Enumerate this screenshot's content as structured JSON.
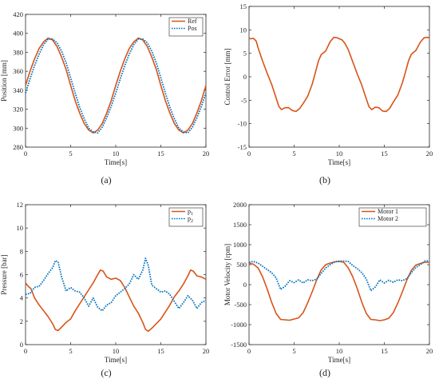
{
  "colors": {
    "orange": "#D95319",
    "blue": "#0072BD",
    "axis": "#262626"
  },
  "chart_data": [
    {
      "id": "a",
      "type": "line",
      "sublabel": "(a)",
      "xlabel": "Time[s]",
      "ylabel": "Position [mm]",
      "xlim": [
        0,
        20
      ],
      "ylim": [
        280,
        420
      ],
      "xticks": [
        0,
        5,
        10,
        15,
        20
      ],
      "yticks": [
        280,
        300,
        320,
        340,
        360,
        380,
        400,
        420
      ],
      "legend_position": "top-right",
      "series": [
        {
          "name": "Ref",
          "color": "#D95319",
          "style": "solid",
          "x": [
            0,
            0.5,
            1,
            1.5,
            2,
            2.5,
            3,
            3.5,
            4,
            4.5,
            5,
            5.5,
            6,
            6.5,
            7,
            7.5,
            8,
            8.5,
            9,
            9.5,
            10,
            10.5,
            11,
            11.5,
            12,
            12.5,
            13,
            13.5,
            14,
            14.5,
            15,
            15.5,
            16,
            16.5,
            17,
            17.5,
            18,
            18.5,
            19,
            19.5,
            20
          ],
          "y": [
            345,
            360,
            373,
            384,
            391,
            395,
            393,
            386,
            375,
            362,
            345,
            329,
            316,
            305,
            298,
            295,
            298,
            305,
            316,
            329,
            345,
            360,
            373,
            384,
            391,
            395,
            393,
            386,
            375,
            362,
            345,
            329,
            316,
            305,
            298,
            295,
            298,
            305,
            316,
            329,
            345
          ]
        },
        {
          "name": "Pos",
          "color": "#0072BD",
          "style": "dotted",
          "x": [
            0,
            0.5,
            1,
            1.5,
            2,
            2.5,
            3,
            3.5,
            4,
            4.5,
            5,
            5.5,
            6,
            6.5,
            7,
            7.5,
            8,
            8.5,
            9,
            9.5,
            10,
            10.5,
            11,
            11.5,
            12,
            12.5,
            13,
            13.5,
            14,
            14.5,
            15,
            15.5,
            16,
            16.5,
            17,
            17.5,
            18,
            18.5,
            19,
            19.5,
            20
          ],
          "y": [
            337,
            352,
            366,
            378,
            388,
            394,
            394,
            390,
            381,
            369,
            353,
            337,
            322,
            310,
            300,
            296,
            295,
            301,
            311,
            323,
            337,
            352,
            366,
            378,
            388,
            394,
            394,
            390,
            381,
            369,
            353,
            337,
            322,
            310,
            300,
            296,
            295,
            301,
            311,
            323,
            337
          ]
        }
      ]
    },
    {
      "id": "b",
      "type": "line",
      "sublabel": "(b)",
      "xlabel": "Time[s]",
      "ylabel": "Control Error [mm]",
      "xlim": [
        0,
        20
      ],
      "ylim": [
        -15,
        15
      ],
      "xticks": [
        0,
        5,
        10,
        15,
        20
      ],
      "yticks": [
        -15,
        -10,
        -5,
        0,
        5,
        10,
        15
      ],
      "series": [
        {
          "name": "",
          "color": "#D95319",
          "style": "solid",
          "x": [
            0,
            0.2,
            0.5,
            0.8,
            1,
            1.5,
            2,
            2.5,
            3,
            3.3,
            3.6,
            4,
            4.4,
            4.8,
            5.2,
            5.6,
            6,
            6.5,
            7,
            7.3,
            7.7,
            8,
            8.5,
            9,
            9.4,
            9.8,
            10,
            10.3,
            10.6,
            11,
            11.5,
            12,
            12.5,
            13,
            13.3,
            13.6,
            14,
            14.4,
            14.8,
            15.2,
            15.6,
            16,
            16.5,
            17,
            17.3,
            17.7,
            18,
            18.5,
            19,
            19.4,
            19.8,
            20
          ],
          "y": [
            8.2,
            8.1,
            8.2,
            7.6,
            6.2,
            3.4,
            0.8,
            -1.6,
            -4.5,
            -6.3,
            -7,
            -6.6,
            -6.6,
            -7.2,
            -7.4,
            -6.8,
            -5.7,
            -4.2,
            -1.6,
            0.5,
            3.4,
            4.7,
            5.5,
            7.5,
            8.4,
            8.3,
            8.1,
            7.9,
            7.2,
            5.8,
            3.2,
            0.6,
            -1.8,
            -4.7,
            -6.4,
            -7,
            -6.5,
            -6.6,
            -7.3,
            -7.4,
            -6.7,
            -5.4,
            -3.9,
            -1.3,
            0.7,
            3.5,
            4.8,
            5.6,
            7.4,
            8.3,
            8.4,
            8.3
          ]
        }
      ]
    },
    {
      "id": "c",
      "type": "line",
      "sublabel": "(c)",
      "xlabel": "Time[s]",
      "ylabel": "Pressure [bar]",
      "xlim": [
        0,
        20
      ],
      "ylim": [
        0,
        12
      ],
      "xticks": [
        0,
        5,
        10,
        15,
        20
      ],
      "yticks": [
        0,
        2,
        4,
        6,
        8,
        10,
        12
      ],
      "legend_position": "top-right",
      "series": [
        {
          "name": "p",
          "subscript": "1",
          "color": "#D95319",
          "style": "solid",
          "x": [
            0,
            0.3,
            0.6,
            1,
            1.5,
            2,
            2.5,
            3,
            3.3,
            3.6,
            4,
            4.5,
            5,
            5.5,
            6,
            6.5,
            7,
            7.5,
            8,
            8.3,
            8.6,
            9,
            9.5,
            10,
            10.5,
            11,
            11.5,
            12,
            12.5,
            13,
            13.3,
            13.6,
            14,
            14.5,
            15,
            15.5,
            16,
            16.5,
            17,
            17.5,
            18,
            18.3,
            18.6,
            19,
            19.5,
            20
          ],
          "y": [
            5.3,
            5.0,
            4.8,
            4.0,
            3.4,
            2.9,
            2.4,
            1.8,
            1.3,
            1.2,
            1.5,
            1.9,
            2.2,
            2.9,
            3.5,
            4.1,
            4.7,
            5.3,
            6.0,
            6.4,
            6.3,
            5.8,
            5.6,
            5.7,
            5.5,
            4.9,
            4.1,
            3.3,
            2.7,
            1.9,
            1.3,
            1.15,
            1.4,
            1.8,
            2.2,
            2.8,
            3.4,
            4.1,
            4.6,
            5.2,
            5.9,
            6.4,
            6.3,
            5.9,
            5.8,
            5.6
          ]
        },
        {
          "name": "p",
          "subscript": "2",
          "color": "#0072BD",
          "style": "dotted",
          "x": [
            0,
            0.5,
            1,
            1.5,
            2,
            2.5,
            3,
            3.3,
            3.6,
            4,
            4.5,
            5,
            5.5,
            6,
            6.5,
            7,
            7.5,
            8,
            8.5,
            9,
            9.5,
            10,
            10.5,
            11,
            11.5,
            12,
            12.5,
            13,
            13.3,
            13.6,
            14,
            14.5,
            15,
            15.5,
            16,
            16.5,
            17,
            17.5,
            18,
            18.5,
            19,
            19.5,
            20
          ],
          "y": [
            4.3,
            4.4,
            4.9,
            5.0,
            5.5,
            6.1,
            6.6,
            7.2,
            7.1,
            5.8,
            4.6,
            4.9,
            4.6,
            4.5,
            4.0,
            3.3,
            4.0,
            3.2,
            2.9,
            3.4,
            3.6,
            4.2,
            4.5,
            4.8,
            5.2,
            6.0,
            5.6,
            6.4,
            7.4,
            6.8,
            5.1,
            4.8,
            4.5,
            4.6,
            4.3,
            3.7,
            3.1,
            3.6,
            4.2,
            3.8,
            3.1,
            3.6,
            3.8
          ]
        }
      ]
    },
    {
      "id": "d",
      "type": "line",
      "sublabel": "(d)",
      "xlabel": "Time[s]",
      "ylabel": "Motor Velocity [rpm]",
      "xlim": [
        0,
        20
      ],
      "ylim": [
        -1500,
        2000
      ],
      "xticks": [
        0,
        5,
        10,
        15,
        20
      ],
      "yticks": [
        -1500,
        -1000,
        -500,
        0,
        500,
        1000,
        1500,
        2000
      ],
      "legend_position": "top-right",
      "series": [
        {
          "name": "Motor 1",
          "color": "#D95319",
          "style": "solid",
          "x": [
            0,
            0.5,
            1,
            1.5,
            2,
            2.5,
            3,
            3.5,
            4,
            4.5,
            5,
            5.5,
            6,
            6.5,
            7,
            7.5,
            8,
            8.5,
            9,
            9.5,
            10,
            10.5,
            11,
            11.5,
            12,
            12.5,
            13,
            13.5,
            14,
            14.5,
            15,
            15.5,
            16,
            16.5,
            17,
            17.5,
            18,
            18.5,
            19,
            19.5,
            20
          ],
          "y": [
            540,
            510,
            420,
            200,
            -100,
            -440,
            -720,
            -870,
            -880,
            -890,
            -860,
            -830,
            -700,
            -460,
            -180,
            120,
            370,
            500,
            540,
            570,
            580,
            560,
            420,
            200,
            -100,
            -440,
            -720,
            -870,
            -880,
            -900,
            -880,
            -840,
            -700,
            -460,
            -180,
            120,
            360,
            490,
            530,
            560,
            560
          ]
        },
        {
          "name": "Motor 2",
          "color": "#0072BD",
          "style": "dotted",
          "x": [
            0,
            0.5,
            1,
            1.5,
            2,
            2.5,
            3,
            3.5,
            4,
            4.5,
            5,
            5.5,
            6,
            6.5,
            7,
            7.5,
            8,
            8.5,
            9,
            9.5,
            10,
            10.5,
            11,
            11.5,
            12,
            12.5,
            13,
            13.5,
            14,
            14.5,
            15,
            15.5,
            16,
            16.5,
            17,
            17.5,
            18,
            18.5,
            19,
            19.5,
            20
          ],
          "y": [
            560,
            580,
            540,
            460,
            380,
            300,
            170,
            -120,
            -40,
            100,
            50,
            120,
            40,
            120,
            100,
            140,
            280,
            420,
            500,
            570,
            590,
            590,
            580,
            480,
            400,
            300,
            140,
            -150,
            -60,
            120,
            40,
            110,
            60,
            120,
            100,
            150,
            300,
            430,
            500,
            590,
            600
          ]
        }
      ]
    }
  ]
}
